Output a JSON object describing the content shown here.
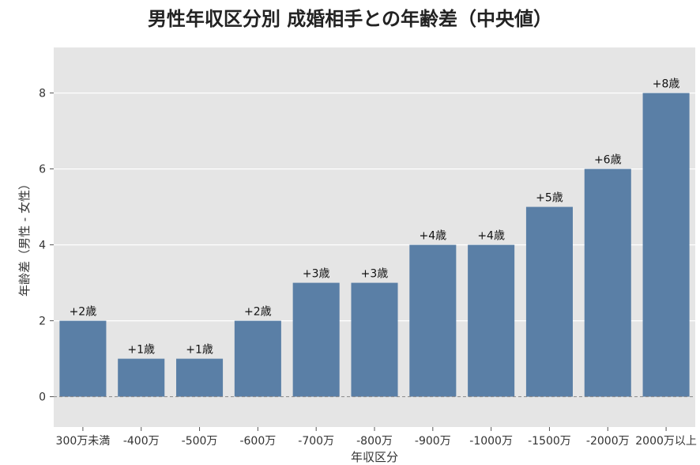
{
  "chart_data": {
    "type": "bar",
    "title": "男性年収区分別 成婚相手との年齢差（中央値）",
    "xlabel": "年収区分",
    "ylabel": "年齢差（男性 - 女性）",
    "categories": [
      "300万未満",
      "-400万",
      "-500万",
      "-600万",
      "-700万",
      "-800万",
      "-900万",
      "-1000万",
      "-1500万",
      "-2000万",
      "2000万以上"
    ],
    "values": [
      2,
      1,
      1,
      2,
      3,
      3,
      4,
      4,
      5,
      6,
      8
    ],
    "data_labels": [
      "+2歳",
      "+1歳",
      "+1歳",
      "+2歳",
      "+3歳",
      "+3歳",
      "+4歳",
      "+4歳",
      "+5歳",
      "+6歳",
      "+8歳"
    ],
    "ylim": [
      -0.8,
      9.2
    ],
    "yticks": [
      0,
      2,
      4,
      6,
      8
    ],
    "grid": true,
    "zero_line": "dashed",
    "colors": {
      "bar": "#5a7fa6",
      "plot_bg": "#e5e5e5",
      "grid": "#ffffff",
      "zero_line": "#888888"
    }
  }
}
